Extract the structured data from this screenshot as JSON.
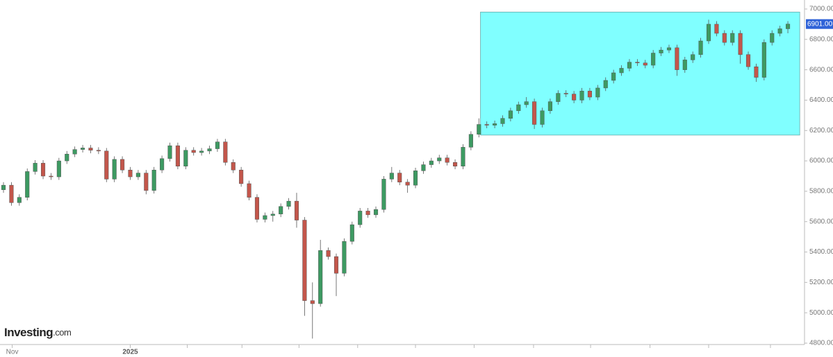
{
  "chart_data": {
    "type": "candlestick",
    "watermark": [
      "Investing",
      ".com"
    ],
    "open": [
      5810,
      5840,
      5725,
      5760,
      5930,
      5985,
      5900,
      5895,
      6000,
      6045,
      6075,
      6085,
      6070,
      6065,
      5880,
      6010,
      5940,
      5895,
      5920,
      5805,
      5940,
      6015,
      6100,
      5965,
      6070,
      6055,
      6065,
      6080,
      6125,
      5990,
      5940,
      5850,
      5760,
      5615,
      5640,
      5650,
      5700,
      5735,
      5610,
      5080,
      5060,
      5410,
      5370,
      5260,
      5470,
      5580,
      5670,
      5645,
      5680,
      5880,
      5920,
      5860,
      5840,
      5935,
      5975,
      6000,
      6020,
      5990,
      5965,
      6090,
      6175,
      6240,
      6235,
      6245,
      6280,
      6330,
      6370,
      6390,
      6240,
      6330,
      6390,
      6445,
      6440,
      6400,
      6460,
      6420,
      6480,
      6530,
      6580,
      6610,
      6650,
      6645,
      6630,
      6710,
      6730,
      6745,
      6600,
      6665,
      6700,
      6790,
      6900,
      6840,
      6780,
      6840,
      6700,
      6620,
      6550,
      6780,
      6840,
      6870
    ],
    "high": [
      5860,
      5860,
      5780,
      5950,
      6005,
      6005,
      5920,
      6020,
      6065,
      6095,
      6105,
      6105,
      6090,
      6085,
      6030,
      6030,
      5960,
      5940,
      5940,
      5960,
      6035,
      6120,
      6120,
      6090,
      6090,
      6085,
      6100,
      6145,
      6145,
      6010,
      5960,
      5870,
      5780,
      5660,
      5670,
      5720,
      5755,
      5790,
      5630,
      5200,
      5480,
      5430,
      5390,
      5490,
      5600,
      5690,
      5690,
      5700,
      5900,
      5960,
      5940,
      5880,
      5955,
      5995,
      6020,
      6040,
      6040,
      6010,
      6110,
      6195,
      6280,
      6260,
      6265,
      6300,
      6350,
      6390,
      6420,
      6410,
      6350,
      6410,
      6465,
      6465,
      6460,
      6480,
      6480,
      6500,
      6550,
      6600,
      6630,
      6670,
      6670,
      6665,
      6730,
      6750,
      6765,
      6765,
      6685,
      6720,
      6810,
      6930,
      6920,
      6860,
      6860,
      6860,
      6720,
      6640,
      6800,
      6860,
      6890,
      6920
    ],
    "low": [
      5790,
      5705,
      5705,
      5740,
      5910,
      5880,
      5875,
      5875,
      5980,
      6025,
      6055,
      6050,
      6045,
      5860,
      5860,
      5920,
      5875,
      5875,
      5780,
      5785,
      5920,
      5995,
      5945,
      5945,
      6035,
      6035,
      6045,
      6060,
      5970,
      5920,
      5830,
      5740,
      5595,
      5595,
      5600,
      5630,
      5680,
      5560,
      4980,
      4830,
      5040,
      5350,
      5110,
      5240,
      5450,
      5560,
      5625,
      5625,
      5660,
      5860,
      5840,
      5790,
      5820,
      5915,
      5955,
      5980,
      5970,
      5945,
      5945,
      6070,
      6155,
      6215,
      6215,
      6225,
      6260,
      6310,
      6350,
      6210,
      6220,
      6310,
      6370,
      6420,
      6380,
      6380,
      6400,
      6400,
      6460,
      6510,
      6560,
      6590,
      6625,
      6610,
      6610,
      6690,
      6710,
      6560,
      6580,
      6645,
      6680,
      6770,
      6820,
      6760,
      6760,
      6640,
      6600,
      6520,
      6530,
      6760,
      6820,
      6840
    ],
    "close": [
      5840,
      5725,
      5760,
      5930,
      5985,
      5900,
      5895,
      6000,
      6045,
      6075,
      6085,
      6070,
      6065,
      5880,
      6010,
      5940,
      5895,
      5920,
      5805,
      5940,
      6015,
      6100,
      5965,
      6070,
      6055,
      6065,
      6080,
      6125,
      5990,
      5940,
      5850,
      5760,
      5615,
      5640,
      5650,
      5700,
      5735,
      5610,
      5080,
      5060,
      5410,
      5370,
      5260,
      5470,
      5580,
      5670,
      5645,
      5680,
      5880,
      5920,
      5860,
      5840,
      5935,
      5975,
      6000,
      6020,
      5990,
      5965,
      6090,
      6175,
      6240,
      6235,
      6245,
      6280,
      6330,
      6370,
      6390,
      6240,
      6330,
      6390,
      6445,
      6440,
      6400,
      6460,
      6420,
      6480,
      6530,
      6580,
      6610,
      6650,
      6645,
      6630,
      6710,
      6730,
      6745,
      6600,
      6665,
      6700,
      6790,
      6900,
      6840,
      6780,
      6840,
      6700,
      6620,
      6550,
      6780,
      6840,
      6870,
      6901
    ],
    "up_color": "#3d9a62",
    "down_color": "#c3564b",
    "xlim": [
      -0.44,
      101.1
    ],
    "xticks": [
      {
        "value": 1.1,
        "label": "Nov"
      },
      {
        "value": 16,
        "label": "2025"
      }
    ],
    "xminor_ticks": [
      23.2,
      30.1,
      37.3,
      44.7,
      52,
      59.4,
      66.9,
      74.1,
      81.6,
      89,
      96.8
    ],
    "ylim": [
      4800,
      7000
    ],
    "yticks": [
      {
        "value": 4800,
        "label": "4800.00"
      },
      {
        "value": 5000,
        "label": "5000.00"
      },
      {
        "value": 5200,
        "label": "5200.00"
      },
      {
        "value": 5400,
        "label": "5400.00"
      },
      {
        "value": 5600,
        "label": "5600.00"
      },
      {
        "value": 5800,
        "label": "5800.00"
      },
      {
        "value": 6000,
        "label": "6000.00"
      },
      {
        "value": 6200,
        "label": "6200.00"
      },
      {
        "value": 6400,
        "label": "6400.00"
      },
      {
        "value": 6600,
        "label": "6600.00"
      },
      {
        "value": 6800,
        "label": "6800.00"
      },
      {
        "value": 7000,
        "label": "7000.00"
      }
    ],
    "last_price": {
      "value": 6901,
      "label": "6901.00",
      "color": "#2f63d8"
    },
    "highlight": {
      "x": [
        60.2,
        100.5
      ],
      "y": [
        6170,
        6980
      ],
      "color": "#80ffff"
    }
  }
}
